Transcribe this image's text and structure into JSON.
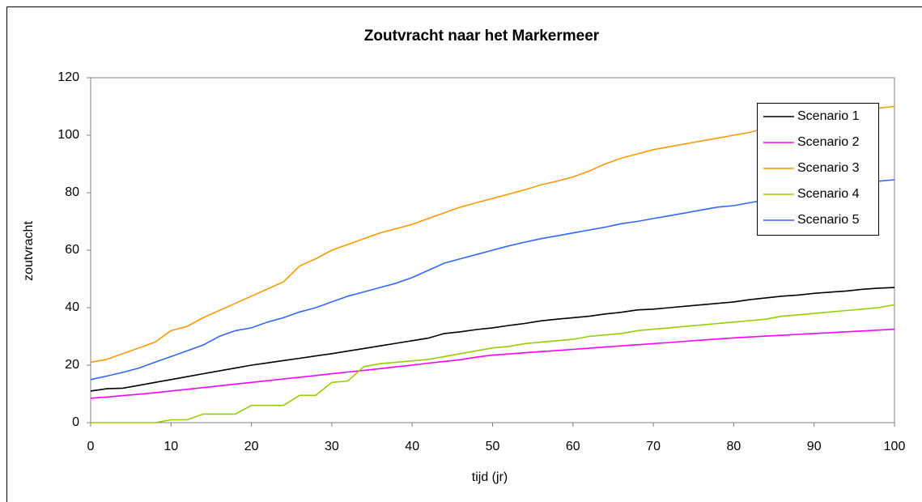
{
  "chart_data": {
    "type": "line",
    "title": "Zoutvracht naar het Markermeer",
    "x_label": "tijd (jr)",
    "y_label": "zoutvracht",
    "x": [
      0,
      2,
      4,
      6,
      8,
      10,
      12,
      14,
      16,
      18,
      20,
      22,
      24,
      26,
      28,
      30,
      32,
      34,
      36,
      38,
      40,
      42,
      44,
      46,
      48,
      50,
      52,
      54,
      56,
      58,
      60,
      62,
      64,
      66,
      68,
      70,
      72,
      74,
      76,
      78,
      80,
      82,
      84,
      86,
      88,
      90,
      92,
      94,
      96,
      98,
      100
    ],
    "series": [
      {
        "name": "Scenario 1",
        "color": "#000000",
        "values": [
          11,
          11.8,
          12,
          13,
          14,
          15,
          16,
          17,
          18,
          19,
          20,
          20.8,
          21.6,
          22.4,
          23.2,
          24,
          24.9,
          25.8,
          26.7,
          27.6,
          28.5,
          29.4,
          31,
          31.6,
          32.4,
          33,
          33.8,
          34.5,
          35.4,
          36,
          36.5,
          37,
          37.8,
          38.4,
          39.2,
          39.5,
          40,
          40.5,
          41,
          41.5,
          42,
          42.8,
          43.4,
          44,
          44.4,
          45,
          45.4,
          45.8,
          46.4,
          46.8,
          47
        ]
      },
      {
        "name": "Scenario 2",
        "color": "#ff00ff",
        "values": [
          8.5,
          8.9,
          9.4,
          9.9,
          10.4,
          11,
          11.6,
          12.2,
          12.8,
          13.4,
          14,
          14.6,
          15.2,
          15.8,
          16.4,
          17,
          17.6,
          18.2,
          18.8,
          19.4,
          20,
          20.7,
          21.3,
          21.9,
          22.8,
          23.5,
          23.9,
          24.3,
          24.7,
          25.1,
          25.5,
          25.9,
          26.3,
          26.7,
          27.1,
          27.5,
          27.9,
          28.3,
          28.7,
          29.1,
          29.5,
          29.8,
          30.1,
          30.4,
          30.7,
          31,
          31.3,
          31.6,
          31.9,
          32.2,
          32.5
        ]
      },
      {
        "name": "Scenario 3",
        "color": "#ff9900",
        "values": [
          21,
          22,
          24,
          26,
          28,
          32,
          33.5,
          36.5,
          39,
          41.5,
          44,
          46.5,
          49,
          54.5,
          57,
          60,
          62,
          64,
          66,
          67.5,
          69,
          71,
          73,
          75,
          76.5,
          78,
          79.5,
          81,
          82.7,
          84,
          85.5,
          87.5,
          90,
          92,
          93.5,
          95,
          96,
          97,
          98,
          99,
          100,
          101,
          102.5,
          104,
          105,
          106,
          107.5,
          108,
          108.8,
          109.4,
          110
        ]
      },
      {
        "name": "Scenario 4",
        "color": "#99cc00",
        "values": [
          0,
          0,
          0,
          0,
          0,
          1,
          1,
          3,
          3,
          3,
          6,
          6,
          6,
          9.5,
          9.5,
          14,
          14.5,
          19.5,
          20.5,
          21,
          21.5,
          22,
          23,
          24,
          25,
          26,
          26.5,
          27.5,
          28,
          28.5,
          29,
          30,
          30.5,
          31,
          32,
          32.5,
          33,
          33.5,
          34,
          34.5,
          35,
          35.5,
          36,
          37,
          37.5,
          38,
          38.5,
          39,
          39.5,
          40,
          41
        ]
      },
      {
        "name": "Scenario 5",
        "color": "#3366ff",
        "values": [
          15,
          16.2,
          17.5,
          19,
          21,
          23,
          25,
          27,
          30,
          32,
          33,
          35,
          36.5,
          38.5,
          40,
          42,
          44,
          45.5,
          47,
          48.5,
          50.5,
          53,
          55.5,
          57,
          58.5,
          60,
          61.5,
          62.8,
          64,
          65,
          66,
          67,
          68,
          69.2,
          70,
          71,
          72,
          73,
          74,
          75,
          75.5,
          76.5,
          77.5,
          78.5,
          79.5,
          80.5,
          81.5,
          82.5,
          83.3,
          84,
          84.5
        ]
      }
    ],
    "xlim": [
      0,
      100
    ],
    "xticks": [
      0,
      10,
      20,
      30,
      40,
      50,
      60,
      70,
      80,
      90,
      100
    ],
    "ylim": [
      0,
      120
    ],
    "yticks": [
      0,
      20,
      40,
      60,
      80,
      100,
      120
    ],
    "grid": false,
    "legend": "upper right"
  }
}
